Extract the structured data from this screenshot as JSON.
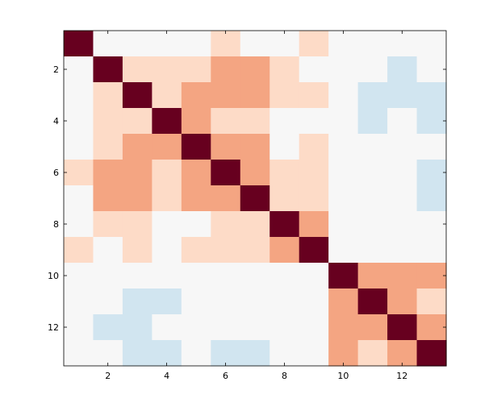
{
  "chart_data": {
    "type": "heatmap",
    "title": "",
    "xlabel": "",
    "ylabel": "",
    "rows": 13,
    "cols": 13,
    "xticks": [
      2,
      4,
      6,
      8,
      10,
      12
    ],
    "yticks": [
      2,
      4,
      6,
      8,
      10,
      12
    ],
    "xtick_labels": [
      "2",
      "4",
      "6",
      "8",
      "10",
      "12"
    ],
    "ytick_labels": [
      "2",
      "4",
      "6",
      "8",
      "10",
      "12"
    ],
    "grid": false,
    "colorscale": {
      "-1": "#d1e5f0",
      "0": "#f7f7f7",
      "1": "#fddbc7",
      "2": "#f4a582",
      "3": "#67001f"
    },
    "values": [
      [
        3,
        0,
        0,
        0,
        0,
        1,
        0,
        0,
        1,
        0,
        0,
        0,
        0
      ],
      [
        0,
        3,
        1,
        1,
        1,
        2,
        2,
        1,
        0,
        0,
        0,
        -1,
        0
      ],
      [
        0,
        1,
        3,
        1,
        2,
        2,
        2,
        1,
        1,
        0,
        -1,
        -1,
        -1
      ],
      [
        0,
        1,
        1,
        3,
        2,
        1,
        1,
        0,
        0,
        0,
        -1,
        0,
        -1
      ],
      [
        0,
        1,
        2,
        2,
        3,
        2,
        2,
        0,
        1,
        0,
        0,
        0,
        0
      ],
      [
        1,
        2,
        2,
        1,
        2,
        3,
        2,
        1,
        1,
        0,
        0,
        0,
        -1
      ],
      [
        0,
        2,
        2,
        1,
        2,
        2,
        3,
        1,
        1,
        0,
        0,
        0,
        -1
      ],
      [
        0,
        1,
        1,
        0,
        0,
        1,
        1,
        3,
        2,
        0,
        0,
        0,
        0
      ],
      [
        1,
        0,
        1,
        0,
        1,
        1,
        1,
        2,
        3,
        0,
        0,
        0,
        0
      ],
      [
        0,
        0,
        0,
        0,
        0,
        0,
        0,
        0,
        0,
        3,
        2,
        2,
        2
      ],
      [
        0,
        0,
        -1,
        -1,
        0,
        0,
        0,
        0,
        0,
        2,
        3,
        2,
        1
      ],
      [
        0,
        -1,
        -1,
        0,
        0,
        0,
        0,
        0,
        0,
        2,
        2,
        3,
        2
      ],
      [
        0,
        0,
        -1,
        -1,
        0,
        -1,
        -1,
        0,
        0,
        2,
        1,
        2,
        3
      ]
    ]
  }
}
